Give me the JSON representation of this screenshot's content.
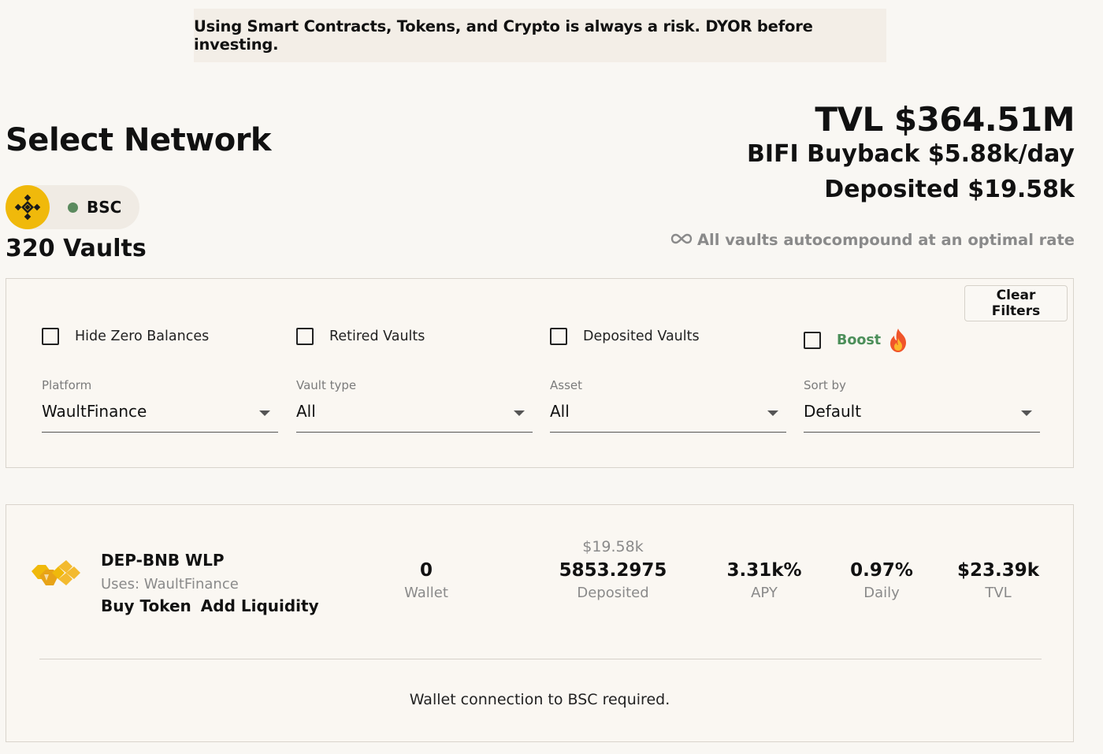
{
  "banner": {
    "text": "Using Smart Contracts, Tokens, and Crypto is always a risk. DYOR before investing."
  },
  "header": {
    "title": "Select Network",
    "network": {
      "label": "BSC",
      "logo_color": "#f0b90b",
      "status_color": "#5b8a5e"
    },
    "vault_count": "320 Vaults"
  },
  "stats": {
    "tvl": "TVL $364.51M",
    "buyback": "BIFI Buyback $5.88k/day",
    "deposited": "Deposited $19.58k",
    "autocompound": "All vaults autocompound at an optimal rate",
    "autocompound_icon": "infinity-icon"
  },
  "filters": {
    "clear_label": "Clear Filters",
    "checkboxes": [
      {
        "label": "Hide Zero Balances",
        "checked": false
      },
      {
        "label": "Retired Vaults",
        "checked": false
      },
      {
        "label": "Deposited Vaults",
        "checked": false
      },
      {
        "label": "Boost",
        "checked": false,
        "icon": "fire-icon"
      }
    ],
    "selects": [
      {
        "caption": "Platform",
        "value": "WaultFinance"
      },
      {
        "caption": "Vault type",
        "value": "All"
      },
      {
        "caption": "Asset",
        "value": "All"
      },
      {
        "caption": "Sort by",
        "value": "Default"
      }
    ]
  },
  "vault": {
    "name": "DEP-BNB WLP",
    "uses": "Uses: WaultFinance",
    "buy_token": "Buy Token",
    "add_liquidity": "Add Liquidity",
    "wallet": {
      "value": "0",
      "label": "Wallet"
    },
    "deposited": {
      "usd": "$19.58k",
      "value": "5853.2975",
      "label": "Deposited"
    },
    "apy": {
      "value": "3.31k%",
      "label": "APY"
    },
    "daily": {
      "value": "0.97%",
      "label": "Daily"
    },
    "tvl": {
      "value": "$23.39k",
      "label": "TVL"
    },
    "notice": "Wallet connection to BSC required."
  }
}
